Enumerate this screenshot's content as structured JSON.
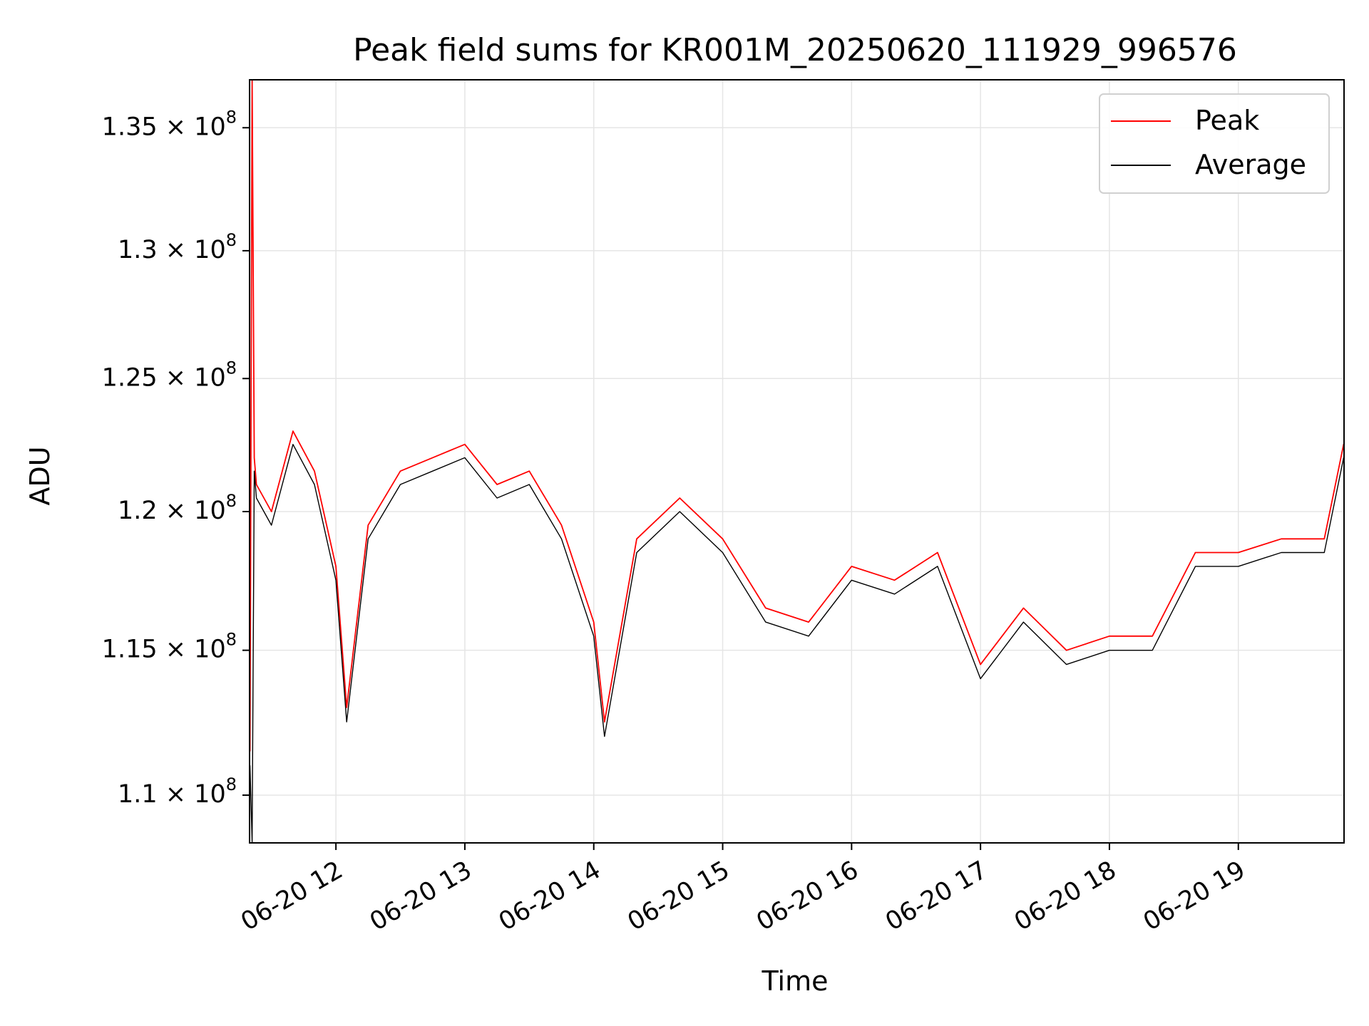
{
  "chart_data": {
    "type": "line",
    "title": "Peak field sums for KR001M_20250620_111929_996576",
    "xlabel": "Time",
    "ylabel": "ADU",
    "y_scale": "log",
    "ylim": [
      108400000,
      137000000
    ],
    "xlim_hours": [
      11.33,
      19.82
    ],
    "grid": true,
    "legend_position": "top-right",
    "x_tick_labels": [
      "06-20 12",
      "06-20 13",
      "06-20 14",
      "06-20 15",
      "06-20 16",
      "06-20 17",
      "06-20 18",
      "06-20 19"
    ],
    "x_tick_hours": [
      12,
      13,
      14,
      15,
      16,
      17,
      18,
      19
    ],
    "y_ticks": [
      {
        "value": 110000000,
        "label": "1.1 × 10^8"
      },
      {
        "value": 115000000,
        "label": "1.15 × 10^8"
      },
      {
        "value": 120000000,
        "label": "1.2 × 10^8"
      },
      {
        "value": 125000000,
        "label": "1.25 × 10^8"
      },
      {
        "value": 130000000,
        "label": "1.3 × 10^8"
      },
      {
        "value": 135000000,
        "label": "1.35 × 10^8"
      }
    ],
    "series": [
      {
        "name": "Peak",
        "color": "#ff0000",
        "x": [
          "06-20 11:20",
          "06-20 11:21",
          "06-20 11:22",
          "06-20 11:23",
          "06-20 11:30",
          "06-20 11:40",
          "06-20 11:50",
          "06-20 12:00",
          "06-20 12:05",
          "06-20 12:15",
          "06-20 12:30",
          "06-20 12:45",
          "06-20 13:00",
          "06-20 13:15",
          "06-20 13:30",
          "06-20 13:45",
          "06-20 14:00",
          "06-20 14:05",
          "06-20 14:20",
          "06-20 14:40",
          "06-20 15:00",
          "06-20 15:20",
          "06-20 15:40",
          "06-20 16:00",
          "06-20 16:20",
          "06-20 16:40",
          "06-20 17:00",
          "06-20 17:20",
          "06-20 17:40",
          "06-20 18:00",
          "06-20 18:20",
          "06-20 18:40",
          "06-20 19:00",
          "06-20 19:20",
          "06-20 19:40",
          "06-20 19:49"
        ],
        "y": [
          111500000,
          137000000,
          122000000,
          121000000,
          120000000,
          123000000,
          121500000,
          118000000,
          113000000,
          119500000,
          121500000,
          122000000,
          122500000,
          121000000,
          121500000,
          119500000,
          116000000,
          112500000,
          119000000,
          120500000,
          119000000,
          116500000,
          116000000,
          118000000,
          117500000,
          118500000,
          114500000,
          116500000,
          115000000,
          115500000,
          115500000,
          118500000,
          118500000,
          119000000,
          119000000,
          122500000
        ]
      },
      {
        "name": "Average",
        "color": "#000000",
        "x": [
          "06-20 11:20",
          "06-20 11:21",
          "06-20 11:22",
          "06-20 11:23",
          "06-20 11:30",
          "06-20 11:40",
          "06-20 11:50",
          "06-20 12:00",
          "06-20 12:05",
          "06-20 12:15",
          "06-20 12:30",
          "06-20 12:45",
          "06-20 13:00",
          "06-20 13:15",
          "06-20 13:30",
          "06-20 13:45",
          "06-20 14:00",
          "06-20 14:05",
          "06-20 14:20",
          "06-20 14:40",
          "06-20 15:00",
          "06-20 15:20",
          "06-20 15:40",
          "06-20 16:00",
          "06-20 16:20",
          "06-20 16:40",
          "06-20 17:00",
          "06-20 17:20",
          "06-20 17:40",
          "06-20 18:00",
          "06-20 18:20",
          "06-20 18:40",
          "06-20 19:00",
          "06-20 19:20",
          "06-20 19:40",
          "06-20 19:49"
        ],
        "y": [
          111000000,
          108400000,
          121500000,
          120500000,
          119500000,
          122500000,
          121000000,
          117500000,
          112500000,
          119000000,
          121000000,
          121500000,
          122000000,
          120500000,
          121000000,
          119000000,
          115500000,
          112000000,
          118500000,
          120000000,
          118500000,
          116000000,
          115500000,
          117500000,
          117000000,
          118000000,
          114000000,
          116000000,
          114500000,
          115000000,
          115000000,
          118000000,
          118000000,
          118500000,
          118500000,
          122000000
        ]
      }
    ]
  }
}
